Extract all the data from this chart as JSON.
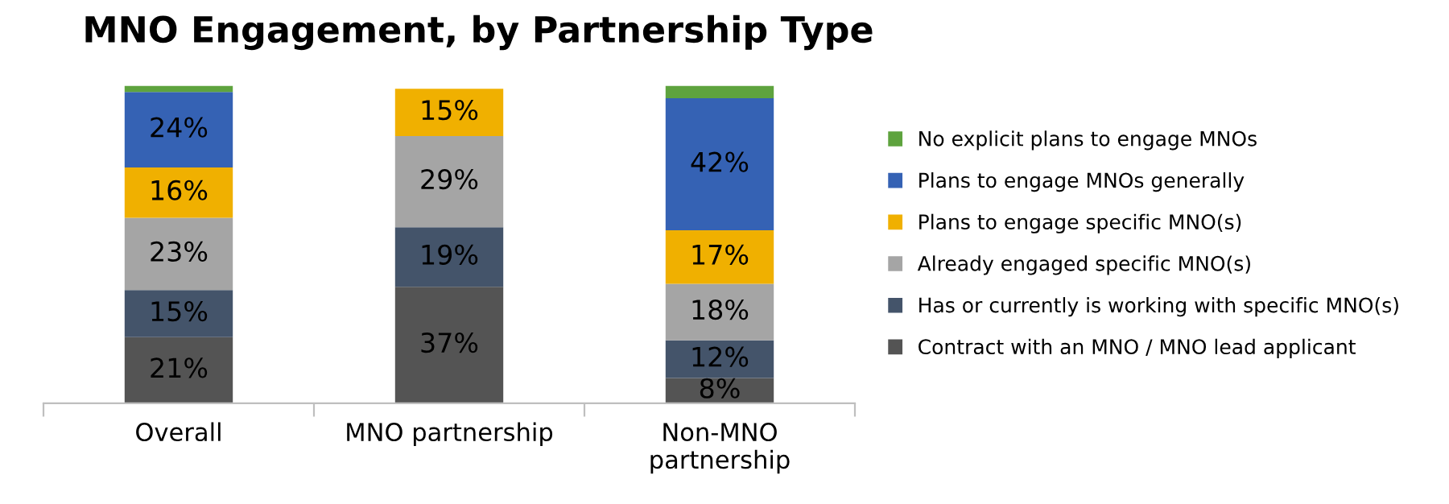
{
  "chart_data": {
    "type": "bar",
    "stacked": true,
    "title": "MNO Engagement, by Partnership Type",
    "categories": [
      "Overall",
      "MNO partnership",
      "Non-MNO\npartnership"
    ],
    "series": [
      {
        "name": "Contract with an MNO / MNO lead applicant",
        "color": "#545454",
        "values": [
          21,
          37,
          8
        ],
        "value_labels": [
          "21%",
          "37%",
          "8%"
        ]
      },
      {
        "name": "Has or currently is working with specific MNO(s)",
        "color": "#44546a",
        "values": [
          15,
          19,
          12
        ],
        "value_labels": [
          "15%",
          "19%",
          "12%"
        ]
      },
      {
        "name": "Already engaged specific MNO(s)",
        "color": "#a5a5a5",
        "values": [
          23,
          29,
          18
        ],
        "value_labels": [
          "23%",
          "29%",
          "18%"
        ]
      },
      {
        "name": "Plans to engage specific MNO(s)",
        "color": "#f0b000",
        "values": [
          16,
          15,
          17
        ],
        "value_labels": [
          "16%",
          "15%",
          "17%"
        ]
      },
      {
        "name": "Plans to engage MNOs generally",
        "color": "#3562b4",
        "values": [
          24,
          0,
          42
        ],
        "value_labels": [
          "24%",
          null,
          "42%"
        ]
      },
      {
        "name": "No explicit plans to engage MNOs",
        "color": "#5ea33e",
        "values": [
          2,
          0,
          4
        ],
        "value_labels": [
          null,
          null,
          null
        ]
      }
    ],
    "legend": "right",
    "grid": false
  }
}
